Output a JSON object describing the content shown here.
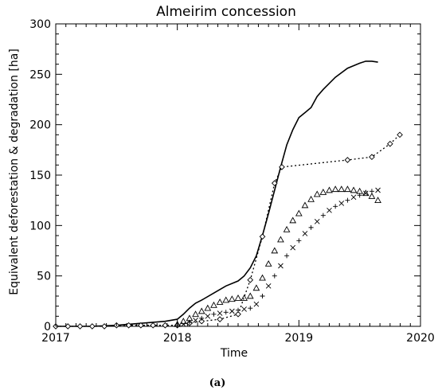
{
  "chart_data": {
    "type": "line",
    "title": "Almeirim concession",
    "xlabel": "Time",
    "ylabel": "Equivalent deforestation & degradation [ha]",
    "xlim": [
      2017,
      2020
    ],
    "ylim": [
      0,
      300
    ],
    "xticks": [
      "2017",
      "2018",
      "2019",
      "2020"
    ],
    "yticks": [
      "0",
      "50",
      "100",
      "150",
      "200",
      "250",
      "300"
    ],
    "grid": false,
    "caption": "(a)",
    "series": [
      {
        "style": "solid-line",
        "x": [
          2017.0,
          2017.3,
          2017.5,
          2017.7,
          2017.9,
          2018.0,
          2018.05,
          2018.1,
          2018.15,
          2018.2,
          2018.3,
          2018.4,
          2018.5,
          2018.55,
          2018.6,
          2018.65,
          2018.7,
          2018.75,
          2018.8,
          2018.85,
          2018.9,
          2018.95,
          2019.0,
          2019.05,
          2019.1,
          2019.15,
          2019.2,
          2019.3,
          2019.4,
          2019.5,
          2019.55,
          2019.6,
          2019.65
        ],
        "y": [
          0,
          0,
          1,
          3,
          5,
          7,
          12,
          18,
          23,
          26,
          33,
          40,
          45,
          50,
          58,
          70,
          90,
          112,
          135,
          158,
          180,
          195,
          207,
          212,
          217,
          228,
          235,
          247,
          256,
          261,
          263,
          263,
          262
        ]
      },
      {
        "style": "dotted-diamond",
        "x": [
          2017.0,
          2017.1,
          2017.2,
          2017.3,
          2017.4,
          2017.5,
          2017.6,
          2017.7,
          2017.8,
          2017.9,
          2018.0,
          2018.1,
          2018.2,
          2018.35,
          2018.5,
          2018.6,
          2018.7,
          2018.8,
          2018.86,
          2019.4,
          2019.6,
          2019.75,
          2019.83
        ],
        "y": [
          0,
          0,
          0,
          0,
          0,
          1,
          1,
          1,
          1,
          1,
          1,
          3,
          5,
          7,
          12,
          46,
          89,
          142,
          158,
          165,
          168,
          181,
          190
        ]
      },
      {
        "style": "triangle-markers",
        "x": [
          2018.0,
          2018.05,
          2018.1,
          2018.15,
          2018.2,
          2018.25,
          2018.3,
          2018.35,
          2018.4,
          2018.45,
          2018.5,
          2018.55,
          2018.6,
          2018.65,
          2018.7,
          2018.75,
          2018.8,
          2018.85,
          2018.9,
          2018.95,
          2019.0,
          2019.05,
          2019.1,
          2019.15,
          2019.2,
          2019.25,
          2019.3,
          2019.35,
          2019.4,
          2019.45,
          2019.5,
          2019.55,
          2019.6,
          2019.65
        ],
        "y": [
          2,
          5,
          8,
          12,
          15,
          18,
          21,
          24,
          26,
          27,
          28,
          28,
          30,
          38,
          48,
          62,
          75,
          86,
          96,
          105,
          112,
          120,
          126,
          131,
          133,
          135,
          136,
          136,
          136,
          135,
          134,
          132,
          129,
          125
        ]
      },
      {
        "style": "cross-markers",
        "x": [
          2018.0,
          2018.05,
          2018.1,
          2018.15,
          2018.2,
          2018.25,
          2018.3,
          2018.35,
          2018.4,
          2018.45,
          2018.5,
          2018.55,
          2018.6,
          2018.65,
          2018.7,
          2018.75,
          2018.8,
          2018.85,
          2018.9,
          2018.95,
          2019.0,
          2019.05,
          2019.1,
          2019.15,
          2019.2,
          2019.25,
          2019.3,
          2019.35,
          2019.4,
          2019.45,
          2019.5,
          2019.55,
          2019.6,
          2019.65
        ],
        "y": [
          1,
          2,
          4,
          6,
          8,
          10,
          12,
          13,
          14,
          15,
          16,
          17,
          18,
          22,
          30,
          40,
          50,
          60,
          70,
          78,
          85,
          92,
          98,
          104,
          110,
          115,
          119,
          122,
          125,
          128,
          130,
          132,
          134,
          135
        ]
      }
    ]
  }
}
